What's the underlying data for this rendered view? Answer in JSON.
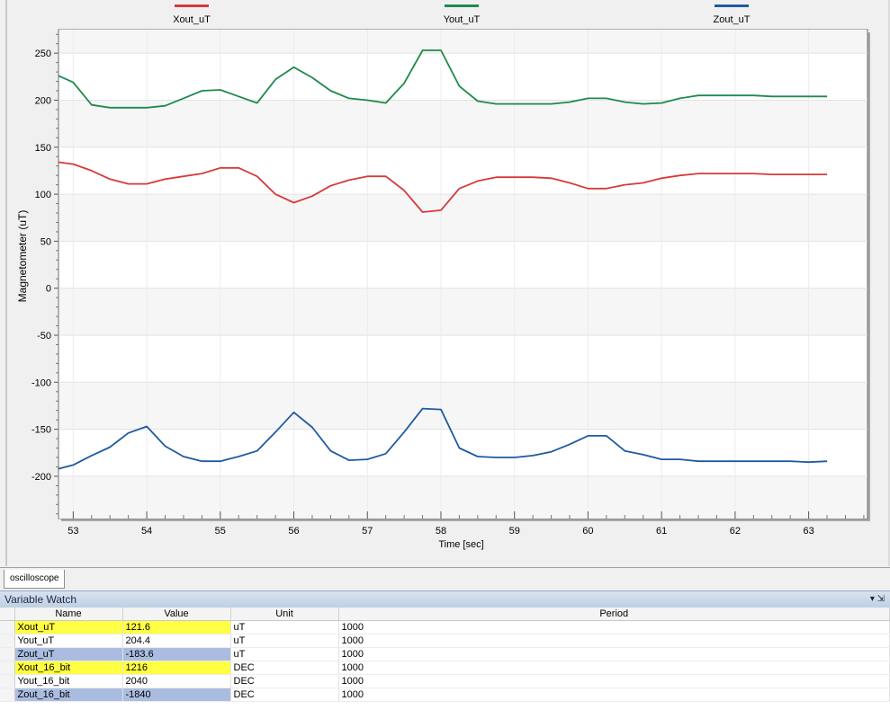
{
  "chart_data": {
    "type": "line",
    "xlabel": "Time [sec]",
    "ylabel": "Magnetometer (uT)",
    "xlim": [
      52.8,
      63.8
    ],
    "ylim": [
      -245,
      275
    ],
    "xticks": [
      53,
      54,
      55,
      56,
      57,
      58,
      59,
      60,
      61,
      62,
      63
    ],
    "yticks": [
      250,
      200,
      150,
      100,
      50,
      0,
      -50,
      -100,
      -150,
      -200
    ],
    "legend_position": "top",
    "series": [
      {
        "name": "Xout_uT",
        "color": "#d63a3a",
        "points": [
          [
            52.8,
            134
          ],
          [
            53.0,
            132
          ],
          [
            53.25,
            125
          ],
          [
            53.5,
            116
          ],
          [
            53.75,
            111
          ],
          [
            54.0,
            111
          ],
          [
            54.25,
            116
          ],
          [
            54.5,
            119
          ],
          [
            54.75,
            122
          ],
          [
            55.0,
            128
          ],
          [
            55.25,
            128
          ],
          [
            55.5,
            119
          ],
          [
            55.75,
            100
          ],
          [
            56.0,
            91
          ],
          [
            56.25,
            98
          ],
          [
            56.5,
            109
          ],
          [
            56.75,
            115
          ],
          [
            57.0,
            119
          ],
          [
            57.25,
            119
          ],
          [
            57.5,
            104
          ],
          [
            57.75,
            81
          ],
          [
            58.0,
            83
          ],
          [
            58.25,
            106
          ],
          [
            58.5,
            114
          ],
          [
            58.75,
            118
          ],
          [
            59.0,
            118
          ],
          [
            59.25,
            118
          ],
          [
            59.5,
            117
          ],
          [
            59.75,
            112
          ],
          [
            60.0,
            106
          ],
          [
            60.25,
            106
          ],
          [
            60.5,
            110
          ],
          [
            60.75,
            112
          ],
          [
            61.0,
            117
          ],
          [
            61.25,
            120
          ],
          [
            61.5,
            122
          ],
          [
            61.75,
            122
          ],
          [
            62.0,
            122
          ],
          [
            62.25,
            122
          ],
          [
            62.5,
            121
          ],
          [
            62.75,
            121
          ],
          [
            63.0,
            121
          ],
          [
            63.25,
            121
          ]
        ]
      },
      {
        "name": "Yout_uT",
        "color": "#1f8a4c",
        "points": [
          [
            52.8,
            226
          ],
          [
            53.0,
            219
          ],
          [
            53.25,
            195
          ],
          [
            53.5,
            192
          ],
          [
            53.75,
            192
          ],
          [
            54.0,
            192
          ],
          [
            54.25,
            194
          ],
          [
            54.5,
            202
          ],
          [
            54.75,
            210
          ],
          [
            55.0,
            211
          ],
          [
            55.25,
            204
          ],
          [
            55.5,
            197
          ],
          [
            55.75,
            222
          ],
          [
            56.0,
            235
          ],
          [
            56.25,
            224
          ],
          [
            56.5,
            210
          ],
          [
            56.75,
            202
          ],
          [
            57.0,
            200
          ],
          [
            57.25,
            197
          ],
          [
            57.5,
            218
          ],
          [
            57.75,
            253
          ],
          [
            58.0,
            253
          ],
          [
            58.25,
            215
          ],
          [
            58.5,
            199
          ],
          [
            58.75,
            196
          ],
          [
            59.0,
            196
          ],
          [
            59.25,
            196
          ],
          [
            59.5,
            196
          ],
          [
            59.75,
            198
          ],
          [
            60.0,
            202
          ],
          [
            60.25,
            202
          ],
          [
            60.5,
            198
          ],
          [
            60.75,
            196
          ],
          [
            61.0,
            197
          ],
          [
            61.25,
            202
          ],
          [
            61.5,
            205
          ],
          [
            61.75,
            205
          ],
          [
            62.0,
            205
          ],
          [
            62.25,
            205
          ],
          [
            62.5,
            204
          ],
          [
            62.75,
            204
          ],
          [
            63.0,
            204
          ],
          [
            63.25,
            204
          ]
        ]
      },
      {
        "name": "Zout_uT",
        "color": "#1f5aa0",
        "points": [
          [
            52.8,
            -192
          ],
          [
            53.0,
            -188
          ],
          [
            53.25,
            -178
          ],
          [
            53.5,
            -169
          ],
          [
            53.75,
            -154
          ],
          [
            54.0,
            -147
          ],
          [
            54.25,
            -168
          ],
          [
            54.5,
            -179
          ],
          [
            54.75,
            -184
          ],
          [
            55.0,
            -184
          ],
          [
            55.25,
            -179
          ],
          [
            55.5,
            -173
          ],
          [
            55.75,
            -153
          ],
          [
            56.0,
            -132
          ],
          [
            56.25,
            -148
          ],
          [
            56.5,
            -173
          ],
          [
            56.75,
            -183
          ],
          [
            57.0,
            -182
          ],
          [
            57.25,
            -176
          ],
          [
            57.5,
            -153
          ],
          [
            57.75,
            -128
          ],
          [
            58.0,
            -129
          ],
          [
            58.25,
            -170
          ],
          [
            58.5,
            -179
          ],
          [
            58.75,
            -180
          ],
          [
            59.0,
            -180
          ],
          [
            59.25,
            -178
          ],
          [
            59.5,
            -174
          ],
          [
            59.75,
            -166
          ],
          [
            60.0,
            -157
          ],
          [
            60.25,
            -157
          ],
          [
            60.5,
            -173
          ],
          [
            60.75,
            -177
          ],
          [
            61.0,
            -182
          ],
          [
            61.25,
            -182
          ],
          [
            61.5,
            -184
          ],
          [
            61.75,
            -184
          ],
          [
            62.0,
            -184
          ],
          [
            62.25,
            -184
          ],
          [
            62.5,
            -184
          ],
          [
            62.75,
            -184
          ],
          [
            63.0,
            -185
          ],
          [
            63.25,
            -184
          ]
        ]
      }
    ]
  },
  "tabs": {
    "oscilloscope": "oscilloscope"
  },
  "variable_watch": {
    "title": "Variable Watch",
    "controls": "▾ ⇲",
    "columns": [
      "Name",
      "Value",
      "Unit",
      "Period"
    ],
    "rows": [
      {
        "name": "Xout_uT",
        "value": "121.6",
        "unit": "uT",
        "period": "1000",
        "highlight": "yellow"
      },
      {
        "name": "Yout_uT",
        "value": "204.4",
        "unit": "uT",
        "period": "1000",
        "highlight": "none"
      },
      {
        "name": "Zout_uT",
        "value": "-183.6",
        "unit": "uT",
        "period": "1000",
        "highlight": "blue"
      },
      {
        "name": "Xout_16_bit",
        "value": "1216",
        "unit": "DEC",
        "period": "1000",
        "highlight": "yellow"
      },
      {
        "name": "Yout_16_bit",
        "value": "2040",
        "unit": "DEC",
        "period": "1000",
        "highlight": "none"
      },
      {
        "name": "Zout_16_bit",
        "value": "-1840",
        "unit": "DEC",
        "period": "1000",
        "highlight": "blue"
      }
    ]
  }
}
